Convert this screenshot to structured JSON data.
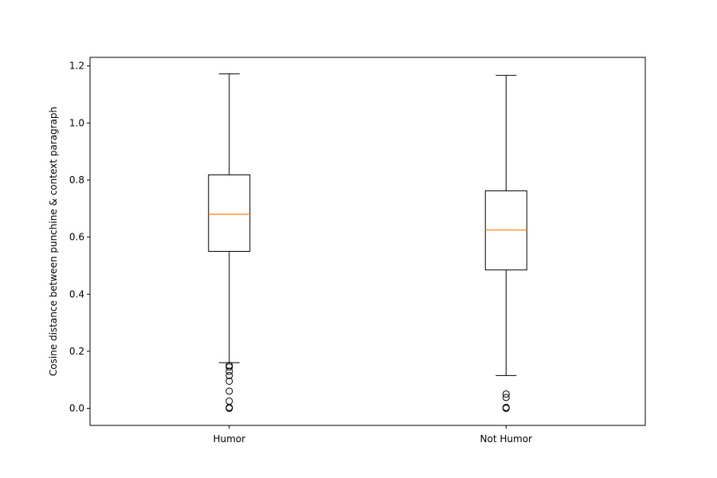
{
  "chart_data": {
    "type": "boxplot",
    "title": "",
    "xlabel": "",
    "ylabel": "Cosine distance between punchine & context paragraph",
    "ylim": [
      -0.06,
      1.23
    ],
    "yticks": [
      0.0,
      0.2,
      0.4,
      0.6,
      0.8,
      1.0,
      1.2
    ],
    "ytick_labels": [
      "0.0",
      "0.2",
      "0.4",
      "0.6",
      "0.8",
      "1.0",
      "1.2"
    ],
    "grid": false,
    "categories": [
      "Humor",
      "Not Humor"
    ],
    "boxes": [
      {
        "category": "Humor",
        "whisker_low": 0.16,
        "q1": 0.55,
        "median": 0.68,
        "q3": 0.818,
        "whisker_high": 1.172,
        "outliers": [
          0.15,
          0.145,
          0.13,
          0.115,
          0.095,
          0.06,
          0.025,
          0.003,
          0.0
        ]
      },
      {
        "category": "Not Humor",
        "whisker_low": 0.115,
        "q1": 0.485,
        "median": 0.625,
        "q3": 0.762,
        "whisker_high": 1.167,
        "outliers": [
          0.05,
          0.038,
          0.003,
          0.0
        ]
      }
    ],
    "colors": {
      "box": "#000000",
      "median": "#ff7f0e",
      "outlier": "#000000"
    }
  }
}
